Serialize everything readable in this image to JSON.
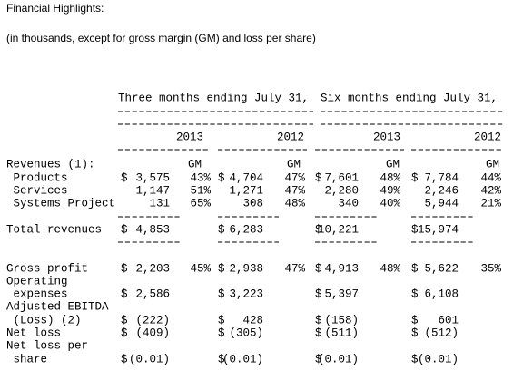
{
  "header": {
    "title": "Financial Highlights:",
    "subtitle": "(in thousands, except for gross margin (GM) and loss per share)"
  },
  "table": {
    "periods": [
      "Three months ending July 31,",
      "Six months ending July 31,"
    ],
    "years": [
      "2013",
      "2012",
      "2013",
      "2012"
    ],
    "gm_headers": [
      "GM",
      "GM",
      "GM",
      "GM"
    ],
    "rows": [
      {
        "label": "Revenues (1):",
        "cells": []
      },
      {
        "label": " Products",
        "cells": [
          {
            "sign": "$",
            "amount": "3,575",
            "pct": "43%"
          },
          {
            "sign": "$",
            "amount": "4,704",
            "pct": "47%"
          },
          {
            "sign": "$",
            "amount": "7,601",
            "pct": "48%"
          },
          {
            "sign": "$",
            "amount": "7,784",
            "pct": "44%"
          }
        ]
      },
      {
        "label": " Services",
        "cells": [
          {
            "amount": "1,147",
            "pct": "51%"
          },
          {
            "amount": "1,271",
            "pct": "47%"
          },
          {
            "amount": "2,280",
            "pct": "49%"
          },
          {
            "amount": "2,246",
            "pct": "42%"
          }
        ]
      },
      {
        "label": " Systems Project",
        "cells": [
          {
            "amount": "131",
            "pct": "65%"
          },
          {
            "amount": "308",
            "pct": "48%"
          },
          {
            "amount": "340",
            "pct": "40%"
          },
          {
            "amount": "5,944",
            "pct": "21%"
          }
        ]
      },
      {
        "label": "Total revenues",
        "cells": [
          {
            "sign": "$",
            "amount": "4,853"
          },
          {
            "sign": "$",
            "amount": "6,283"
          },
          {
            "sign": "$",
            "amount": "10,221"
          },
          {
            "sign": "$",
            "amount": "15,974"
          }
        ]
      },
      {
        "label": "Gross profit",
        "cells": [
          {
            "sign": "$",
            "amount": "2,203",
            "pct": "45%"
          },
          {
            "sign": "$",
            "amount": "2,938",
            "pct": "47%"
          },
          {
            "sign": "$",
            "amount": "4,913",
            "pct": "48%"
          },
          {
            "sign": "$",
            "amount": "5,622",
            "pct": "35%"
          }
        ]
      },
      {
        "label": "Operating",
        "cells": []
      },
      {
        "label": " expenses",
        "cells": [
          {
            "sign": "$",
            "amount": "2,586"
          },
          {
            "sign": "$",
            "amount": "3,223"
          },
          {
            "sign": "$",
            "amount": "5,397"
          },
          {
            "sign": "$",
            "amount": "6,108"
          }
        ]
      },
      {
        "label": "Adjusted EBITDA",
        "cells": []
      },
      {
        "label": " (Loss) (2)",
        "cells": [
          {
            "sign": "$",
            "amount": "(222)"
          },
          {
            "sign": "$",
            "amount": "428"
          },
          {
            "sign": "$",
            "amount": "(158)"
          },
          {
            "sign": "$",
            "amount": "601"
          }
        ]
      },
      {
        "label": "Net loss",
        "cells": [
          {
            "sign": "$",
            "amount": "(409)"
          },
          {
            "sign": "$",
            "amount": "(305)"
          },
          {
            "sign": "$",
            "amount": "(511)"
          },
          {
            "sign": "$",
            "amount": "(512)"
          }
        ]
      },
      {
        "label": "Net loss per",
        "cells": []
      },
      {
        "label": " share",
        "cells": [
          {
            "sign": "$",
            "amount": "(0.01)"
          },
          {
            "sign": "$",
            "amount": "(0.01)"
          },
          {
            "sign": "$",
            "amount": "(0.01)"
          },
          {
            "sign": "$",
            "amount": "(0.01)"
          }
        ]
      }
    ]
  }
}
